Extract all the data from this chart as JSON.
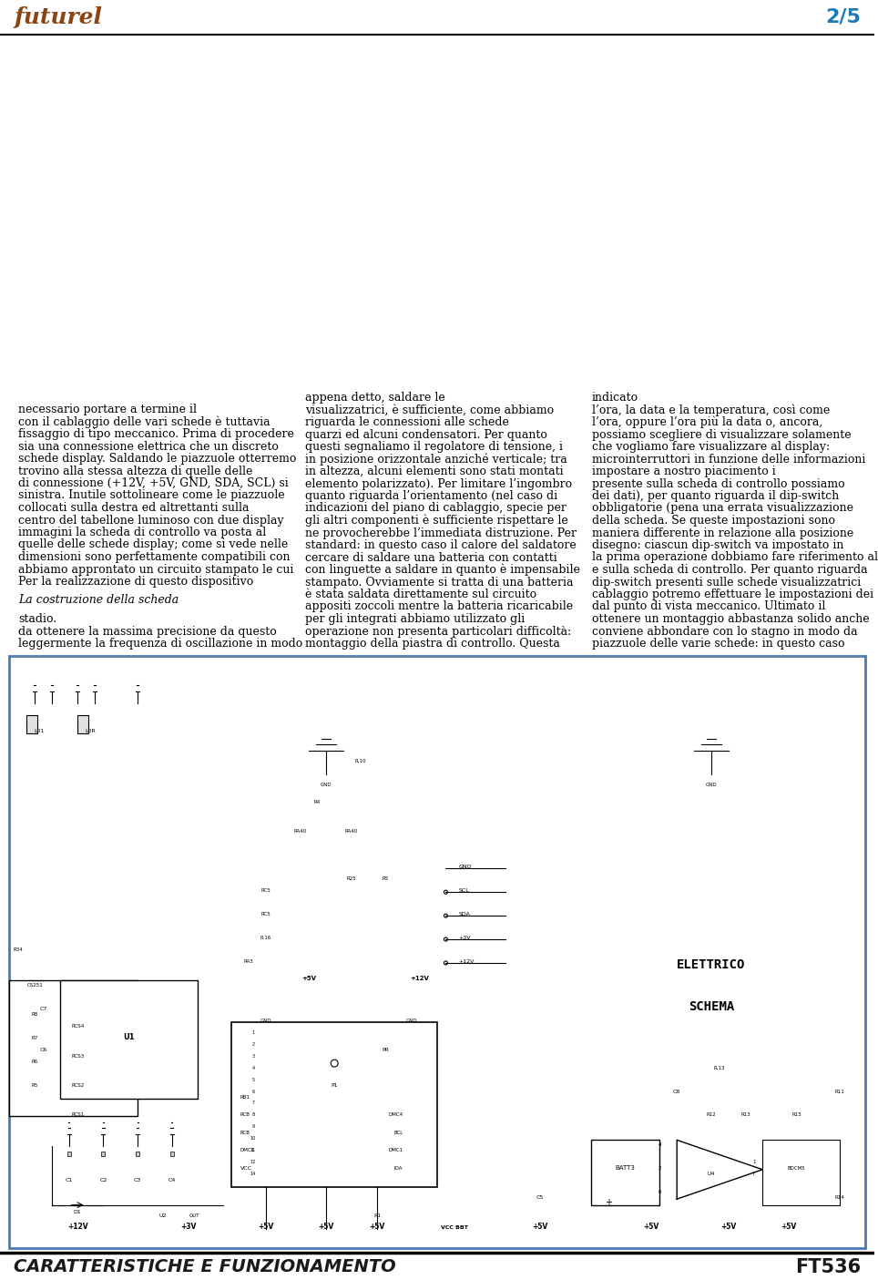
{
  "header_left": "CARATTERISTICHE E FUNZIONAMENTO",
  "header_right": "FT536",
  "header_bg": "#ffffff",
  "header_line_color": "#000000",
  "page_bg": "#ffffff",
  "schematic_border_color": "#4a7ab5",
  "schematic_bg": "#ffffff",
  "footer_page": "2/5",
  "footer_logo": "futurel",
  "col1_title": "La costruzione della scheda",
  "col1_text": "leggermente la frequenza di oscillazione in modo da ottenere la massima precisione da questo stadio.\n\nLa costruzione della scheda\n\nPer la realizzazione di questo dispositivo abbiamo approntato un circuito stampato le cui dimensioni sono perfettamente compatibili con quelle delle schede display; come si vede nelle immagini la scheda di controllo va posta al centro del tabellone luminoso con due display collocati sulla destra ed altrettanti sulla sinistra. Inutile sottolineare come le piazzuole di connessione (+12V, +5V, GND, SDA, SCL) si trovino alla stessa altezza di quelle delle schede display. Saldando le piazzuole otterremo sia una connessione elettrica che un discreto fissaggio di tipo meccanico. Prima di procedere con il cablaggio delle vari schede è tuttavia necessario portare a termine il",
  "col2_text": "montaggio della piastra di controllo. Questa operazione non presenta particolari difficoltà: per gli integrati abbiamo utilizzato gli appositi zoccoli mentre la batteria ricaricabile è stata saldata direttamente sul circuito stampato. Ovviamente si tratta di una batteria con linguette a saldare in quanto è impensabile cercare di saldare una batteria con contatti standard: in questo caso il calore del saldatore ne provocherebbe l’immediata distruzione. Per gli altri componenti è sufficiente rispettare le indicazioni del piano di cablaggio, specie per quanto riguarda l’orientamento (nel caso di elemento polarizzato). Per limitare l’ingombro in altezza, alcuni elementi sono stati montati in posizione orizzontale anziché verticale; tra questi segnaliamo il regolatore di tensione, i quarzi ed alcuni condensatori. Per quanto riguarda le connessioni alle schede visualizzatrici, è sufficiente, come abbiamo appena detto, saldare le",
  "col3_text": "piazzuole delle varie schede: in questo caso conviene abbondare con lo stagno in modo da ottenere un montaggio abbastanza solido anche dal punto di vista meccanico. Ultimato il cablaggio potremo effettuare le impostazioni dei dip-switch presenti sulle schede visualizzatrici e sulla scheda di controllo. Per quanto riguarda la prima operazione dobbiamo fare riferimento al disegno: ciascun dip-switch va impostato in maniera differente in relazione alla posizione della scheda. Se queste impostazioni sono obbligatorie (pena una errata visualizzazione dei dati), per quanto riguarda il dip-switch presente sulla scheda di controllo possiamo impostare a nostro piacimento i microinterruttori in funzione delle informazioni che vogliamo fare visualizzare al display: possiamo scegliere di visualizzare solamente l’ora, oppure l’ora più la data o, ancora, l’ora, la data e la temperatura, così come indicato",
  "text_color": "#000000",
  "title_italic_color": "#000000",
  "font_size_body": 9.2,
  "font_size_header": 14,
  "font_size_col_title": 9.5,
  "schematic_image_placeholder": true
}
